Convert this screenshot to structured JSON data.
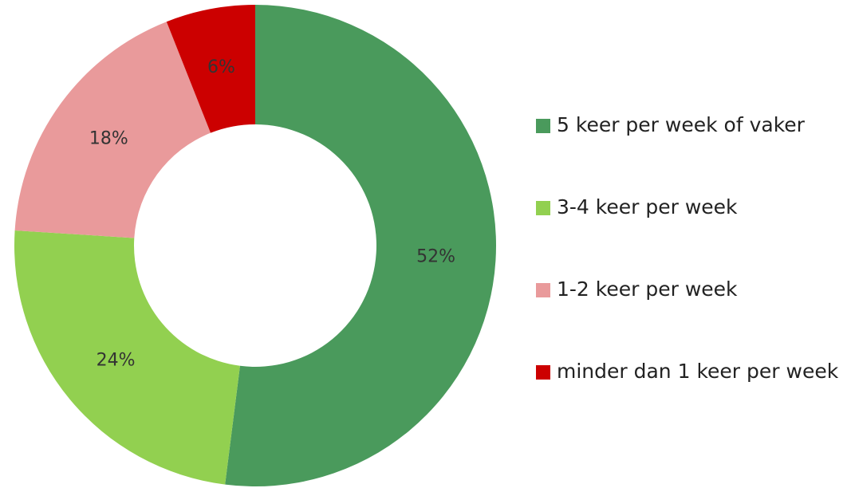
{
  "chart_data": {
    "type": "donut",
    "categories": [
      "5 keer per week of vaker",
      "3-4 keer per week",
      "1-2 keer per week",
      "minder dan 1 keer per week"
    ],
    "values": [
      52,
      24,
      18,
      6
    ],
    "value_labels": [
      "52%",
      "24%",
      "18%",
      "6%"
    ],
    "colors": [
      "#4a9a5c",
      "#92d050",
      "#e99a9b",
      "#cc0000"
    ],
    "legend": "right"
  }
}
